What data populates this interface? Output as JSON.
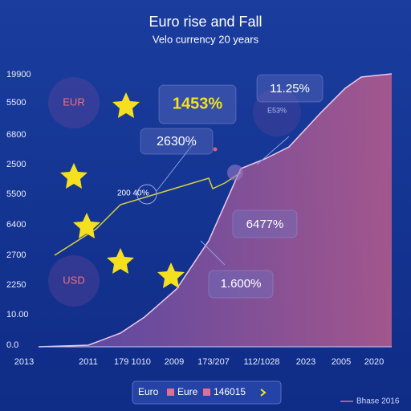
{
  "header": {
    "title": "Euro rise and Fall",
    "subtitle": "Velo currency 20 years"
  },
  "y_axis_labels": [
    "19900",
    "5500",
    "6800",
    "2500",
    "5500",
    "6400",
    "2700",
    "2250",
    "10.00",
    "0.0"
  ],
  "x_axis_labels": [
    "2013",
    "2011",
    "179 1010",
    "2009",
    "173/207",
    "112/1028",
    "2023",
    "2005",
    "2020"
  ],
  "annotations": [
    "1453%",
    "2630%",
    "11.25%",
    "6477%",
    "1.600%",
    "200 40%",
    "E53%",
    "EUR",
    "USD"
  ],
  "legend": {
    "items": [
      "Euro",
      "Eure",
      "146015"
    ],
    "note": "Bhase 2016"
  }
}
